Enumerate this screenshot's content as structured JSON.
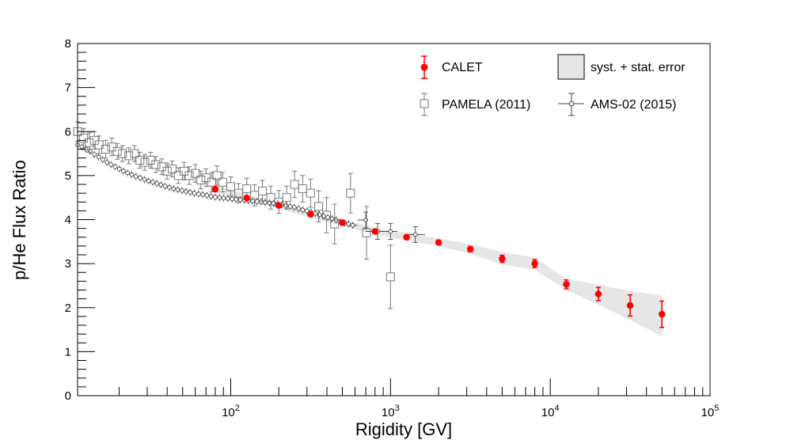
{
  "chart_data": {
    "type": "scatter",
    "xscale": "log",
    "xlabel": "Rigidity [GV]",
    "ylabel": "p/He Flux Ratio",
    "xlim": [
      11,
      100000
    ],
    "ylim": [
      0,
      8
    ],
    "yticks": [
      0,
      1,
      2,
      3,
      4,
      5,
      6,
      7,
      8
    ],
    "xtick_labels": [
      {
        "value": 100,
        "base": "10",
        "exp": "2"
      },
      {
        "value": 1000,
        "base": "10",
        "exp": "3"
      },
      {
        "value": 10000,
        "base": "10",
        "exp": "4"
      },
      {
        "value": 100000,
        "base": "10",
        "exp": "5"
      }
    ],
    "band": {
      "name": "syst. + stat. error",
      "color": "#e6e6e6",
      "x": [
        80,
        126,
        200,
        316,
        500,
        800,
        1260,
        2000,
        3160,
        5000,
        8000,
        12600,
        20000,
        31600,
        50000
      ],
      "lower": [
        4.62,
        4.42,
        4.25,
        4.04,
        3.86,
        3.66,
        3.52,
        3.4,
        3.22,
        2.98,
        2.86,
        2.4,
        2.07,
        1.72,
        1.35
      ],
      "upper": [
        4.78,
        4.57,
        4.4,
        4.2,
        4.01,
        3.81,
        3.7,
        3.57,
        3.44,
        3.26,
        3.14,
        2.65,
        2.52,
        2.38,
        2.27
      ]
    },
    "series": [
      {
        "name": "CALET",
        "color": "#ff0000",
        "marker": "filled-circle",
        "x": [
          80,
          126,
          200,
          316,
          500,
          800,
          1260,
          2000,
          3160,
          5000,
          8000,
          12600,
          20000,
          31600,
          50000
        ],
        "y": [
          4.69,
          4.49,
          4.32,
          4.12,
          3.93,
          3.73,
          3.6,
          3.48,
          3.33,
          3.11,
          3.0,
          2.53,
          2.31,
          2.05,
          1.85
        ],
        "err": [
          0.05,
          0.04,
          0.04,
          0.04,
          0.05,
          0.05,
          0.05,
          0.05,
          0.06,
          0.08,
          0.09,
          0.1,
          0.15,
          0.24,
          0.3
        ]
      },
      {
        "name": "PAMELA (2011)",
        "color": "#777777",
        "marker": "open-square",
        "x": [
          11,
          12,
          13,
          14,
          15,
          16.5,
          18,
          19.5,
          21,
          23,
          25,
          27,
          29,
          31.5,
          34,
          37,
          40,
          43,
          47,
          51,
          55,
          60,
          65,
          70,
          76,
          82,
          89,
          100,
          112,
          126,
          141,
          158,
          178,
          200,
          224,
          251,
          282,
          316,
          355,
          398,
          447,
          562,
          708,
          1000
        ],
        "y": [
          6.0,
          5.85,
          5.75,
          5.8,
          5.7,
          5.6,
          5.65,
          5.55,
          5.5,
          5.45,
          5.5,
          5.35,
          5.3,
          5.35,
          5.25,
          5.2,
          5.1,
          5.15,
          5.0,
          5.1,
          5.0,
          5.05,
          4.9,
          4.95,
          4.85,
          5.0,
          4.85,
          4.75,
          4.6,
          4.7,
          4.55,
          4.65,
          4.5,
          4.4,
          4.5,
          4.8,
          4.7,
          4.6,
          4.3,
          4.1,
          3.9,
          4.6,
          3.7,
          2.7
        ],
        "err": [
          0.22,
          0.22,
          0.22,
          0.2,
          0.2,
          0.2,
          0.2,
          0.18,
          0.18,
          0.18,
          0.18,
          0.18,
          0.18,
          0.18,
          0.18,
          0.18,
          0.18,
          0.18,
          0.18,
          0.2,
          0.2,
          0.2,
          0.2,
          0.2,
          0.22,
          0.22,
          0.22,
          0.22,
          0.22,
          0.24,
          0.24,
          0.24,
          0.26,
          0.26,
          0.26,
          0.3,
          0.3,
          0.32,
          0.35,
          0.4,
          0.45,
          0.45,
          0.6,
          0.72
        ]
      },
      {
        "name": "AMS-02 (2015)",
        "color": "#444444",
        "marker": "open-circle",
        "x": [
          11,
          11.7,
          12.4,
          13.2,
          14,
          14.9,
          15.8,
          16.8,
          17.8,
          18.9,
          20.1,
          21.3,
          22.6,
          24,
          25.5,
          27.1,
          28.8,
          30.6,
          32.5,
          34.5,
          36.6,
          38.9,
          41.3,
          43.9,
          46.6,
          49.5,
          52.5,
          55.8,
          59.2,
          62.9,
          66.8,
          70.9,
          75.3,
          80,
          85,
          90.2,
          95.8,
          102,
          108,
          115,
          122,
          129,
          137,
          146,
          155,
          164,
          175,
          185,
          197,
          209,
          222,
          236,
          250,
          266,
          282,
          300,
          318,
          338,
          359,
          381,
          405,
          430,
          457,
          485,
          515,
          547,
          580,
          700,
          830,
          1000,
          1430
        ],
        "y": [
          5.7,
          5.65,
          5.6,
          5.55,
          5.48,
          5.42,
          5.36,
          5.3,
          5.25,
          5.2,
          5.15,
          5.1,
          5.06,
          5.02,
          4.98,
          4.95,
          4.91,
          4.88,
          4.85,
          4.82,
          4.79,
          4.76,
          4.73,
          4.7,
          4.68,
          4.66,
          4.64,
          4.62,
          4.6,
          4.58,
          4.57,
          4.55,
          4.53,
          4.51,
          4.5,
          4.49,
          4.48,
          4.47,
          4.46,
          4.45,
          4.44,
          4.43,
          4.42,
          4.41,
          4.4,
          4.39,
          4.38,
          4.37,
          4.36,
          4.34,
          4.32,
          4.3,
          4.28,
          4.25,
          4.22,
          4.2,
          4.17,
          4.14,
          4.11,
          4.08,
          4.05,
          4.02,
          3.99,
          3.95,
          3.92,
          3.9,
          3.87,
          3.99,
          3.73,
          3.73,
          3.66
        ],
        "err": [
          0.08,
          0.08,
          0.08,
          0.08,
          0.08,
          0.08,
          0.08,
          0.08,
          0.08,
          0.08,
          0.08,
          0.08,
          0.08,
          0.08,
          0.08,
          0.08,
          0.08,
          0.08,
          0.08,
          0.08,
          0.08,
          0.08,
          0.08,
          0.08,
          0.08,
          0.08,
          0.08,
          0.08,
          0.08,
          0.08,
          0.08,
          0.08,
          0.08,
          0.08,
          0.08,
          0.08,
          0.08,
          0.08,
          0.08,
          0.08,
          0.08,
          0.08,
          0.08,
          0.08,
          0.08,
          0.08,
          0.08,
          0.08,
          0.08,
          0.08,
          0.08,
          0.08,
          0.08,
          0.08,
          0.08,
          0.08,
          0.08,
          0.08,
          0.08,
          0.08,
          0.08,
          0.08,
          0.08,
          0.08,
          0.08,
          0.08,
          0.08,
          0.18,
          0.18,
          0.18,
          0.18
        ],
        "xerr_lo": [
          550,
          620,
          700,
          850
        ],
        "xerr_hi": [
          620,
          700,
          850,
          1100
        ]
      }
    ],
    "legend": {
      "position": "top-right",
      "entries": [
        "CALET",
        "syst. + stat. error",
        "PAMELA (2011)",
        "AMS-02 (2015)"
      ]
    }
  }
}
